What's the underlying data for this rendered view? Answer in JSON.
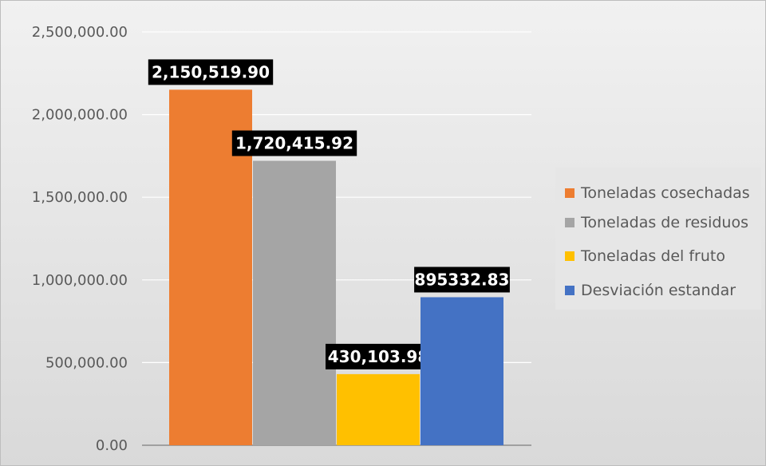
{
  "chart_data": {
    "type": "bar",
    "title": "",
    "xlabel": "",
    "ylabel": "",
    "ylim": [
      0,
      2500000
    ],
    "yticks": [
      0,
      500000,
      1000000,
      1500000,
      2000000,
      2500000
    ],
    "ytick_labels": [
      "0.00",
      "500,000.00",
      "1,000,000.00",
      "1,500,000.00",
      "2,000,000.00",
      "2,500,000.00"
    ],
    "grid": true,
    "legend_position": "right",
    "series": [
      {
        "name": "Toneladas cosechadas",
        "values": [
          2150519.9
        ],
        "color": "#ED7D31",
        "data_label": "2,150,519.90"
      },
      {
        "name": "Toneladas de residuos",
        "values": [
          1720415.92
        ],
        "color": "#A5A5A5",
        "data_label": "1,720,415.92"
      },
      {
        "name": "Toneladas del fruto",
        "values": [
          430103.98
        ],
        "color": "#FFC000",
        "data_label": "430,103.98"
      },
      {
        "name": "Desviación estandar",
        "values": [
          895332.83
        ],
        "color": "#4472C4",
        "data_label": "895332.83"
      }
    ]
  },
  "legend": {
    "items": [
      {
        "label": "Toneladas cosechadas",
        "color": "#ED7D31"
      },
      {
        "label": "Toneladas de residuos",
        "color": "#A5A5A5"
      },
      {
        "label": "Toneladas del fruto",
        "color": "#FFC000"
      },
      {
        "label": "Desviación estandar",
        "color": "#4472C4"
      }
    ]
  }
}
